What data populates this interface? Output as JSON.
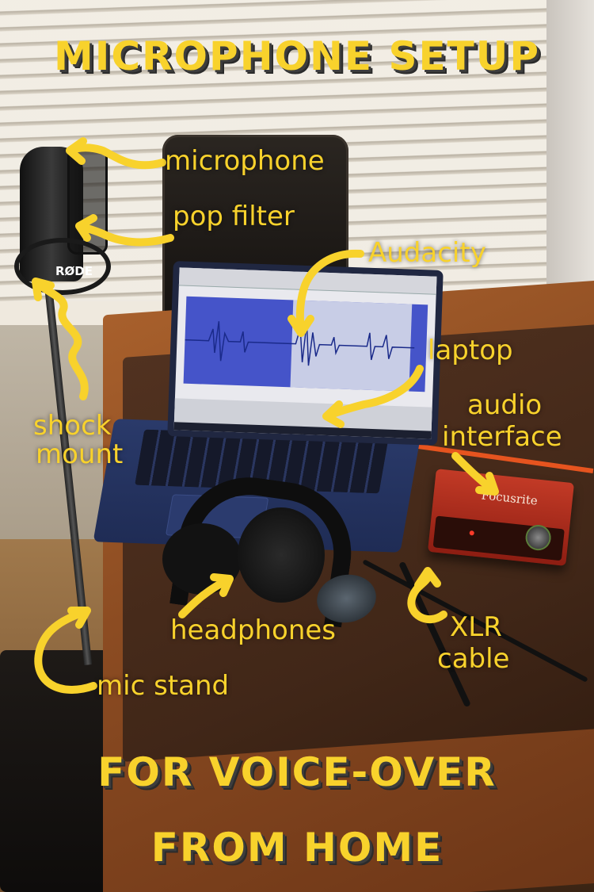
{
  "title": {
    "line1": "MICROPHONE SETUP",
    "line2": "FOR VOICE-OVER",
    "line3": "FROM HOME"
  },
  "labels": {
    "microphone": "microphone",
    "pop_filter": "pop filter",
    "audacity": "Audacity",
    "laptop": "laptop",
    "audio_interface_1": "audio",
    "audio_interface_2": "interface",
    "shock_mount_1": "shock",
    "shock_mount_2": "mount",
    "headphones": "headphones",
    "xlr_1": "XLR",
    "xlr_2": "cable",
    "mic_stand": "mic stand"
  },
  "device_text": {
    "mic_brand": "RØDE",
    "interface_brand": "Focusrite"
  },
  "colors": {
    "accent_yellow": "#f8d22c",
    "interface_red": "#c23a26",
    "audacity_track_blue": "#4554c9"
  }
}
